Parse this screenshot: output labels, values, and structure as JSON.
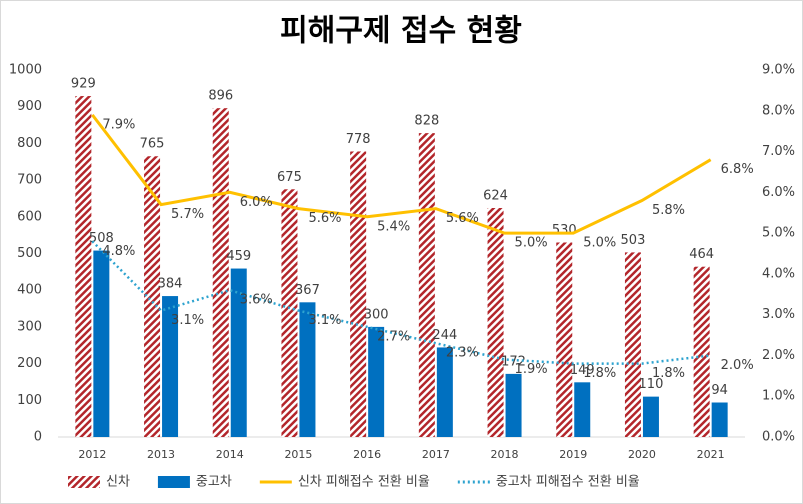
{
  "chart_data": {
    "type": "bar",
    "title": "피해구제 접수 현황",
    "categories": [
      "2012",
      "2013",
      "2014",
      "2015",
      "2016",
      "2017",
      "2018",
      "2019",
      "2020",
      "2021"
    ],
    "series": [
      {
        "name": "신차",
        "type": "bar",
        "pattern": "hatch",
        "color": "#b3262b",
        "values": [
          929,
          765,
          896,
          675,
          778,
          828,
          624,
          530,
          503,
          464
        ]
      },
      {
        "name": "중고차",
        "type": "bar",
        "color": "#0070c0",
        "values": [
          508,
          384,
          459,
          367,
          300,
          244,
          172,
          149,
          110,
          94
        ]
      },
      {
        "name": "신차 피해접수 전환 비율",
        "type": "line",
        "axis": "y2",
        "color": "#ffc000",
        "values": [
          7.9,
          5.7,
          6.0,
          5.6,
          5.4,
          5.6,
          5.0,
          5.0,
          5.8,
          6.8
        ],
        "value_labels": [
          "7.9%",
          "5.7%",
          "6.0%",
          "5.6%",
          "5.4%",
          "5.6%",
          "5.0%",
          "5.0%",
          "5.8%",
          "6.8%"
        ]
      },
      {
        "name": "중고차 피해접수 전환 비율",
        "type": "line",
        "dash": "dotted",
        "axis": "y2",
        "color": "#2ea3cf",
        "values": [
          4.8,
          3.1,
          3.6,
          3.1,
          2.7,
          2.3,
          1.9,
          1.8,
          1.8,
          2.0
        ],
        "value_labels": [
          "4.8%",
          "3.1%",
          "3.6%",
          "3.1%",
          "2.7%",
          "2.3%",
          "1.9%",
          "1.8%",
          "1.8%",
          "2.0%"
        ]
      }
    ],
    "ylim": [
      0,
      1000
    ],
    "yticks": [
      0,
      100,
      200,
      300,
      400,
      500,
      600,
      700,
      800,
      900,
      1000
    ],
    "y2lim": [
      0,
      9
    ],
    "y2ticks": [
      {
        "value": 0,
        "label": "0.0%"
      },
      {
        "value": 1,
        "label": "1.0%"
      },
      {
        "value": 2,
        "label": "2.0%"
      },
      {
        "value": 3,
        "label": "3.0%"
      },
      {
        "value": 4,
        "label": "4.0%"
      },
      {
        "value": 5,
        "label": "5.0%"
      },
      {
        "value": 6,
        "label": "6.0%"
      },
      {
        "value": 7,
        "label": "7.0%"
      },
      {
        "value": 8,
        "label": "8.0%"
      },
      {
        "value": 9,
        "label": "9.0%"
      }
    ],
    "grid": false,
    "legend": "bottom"
  }
}
